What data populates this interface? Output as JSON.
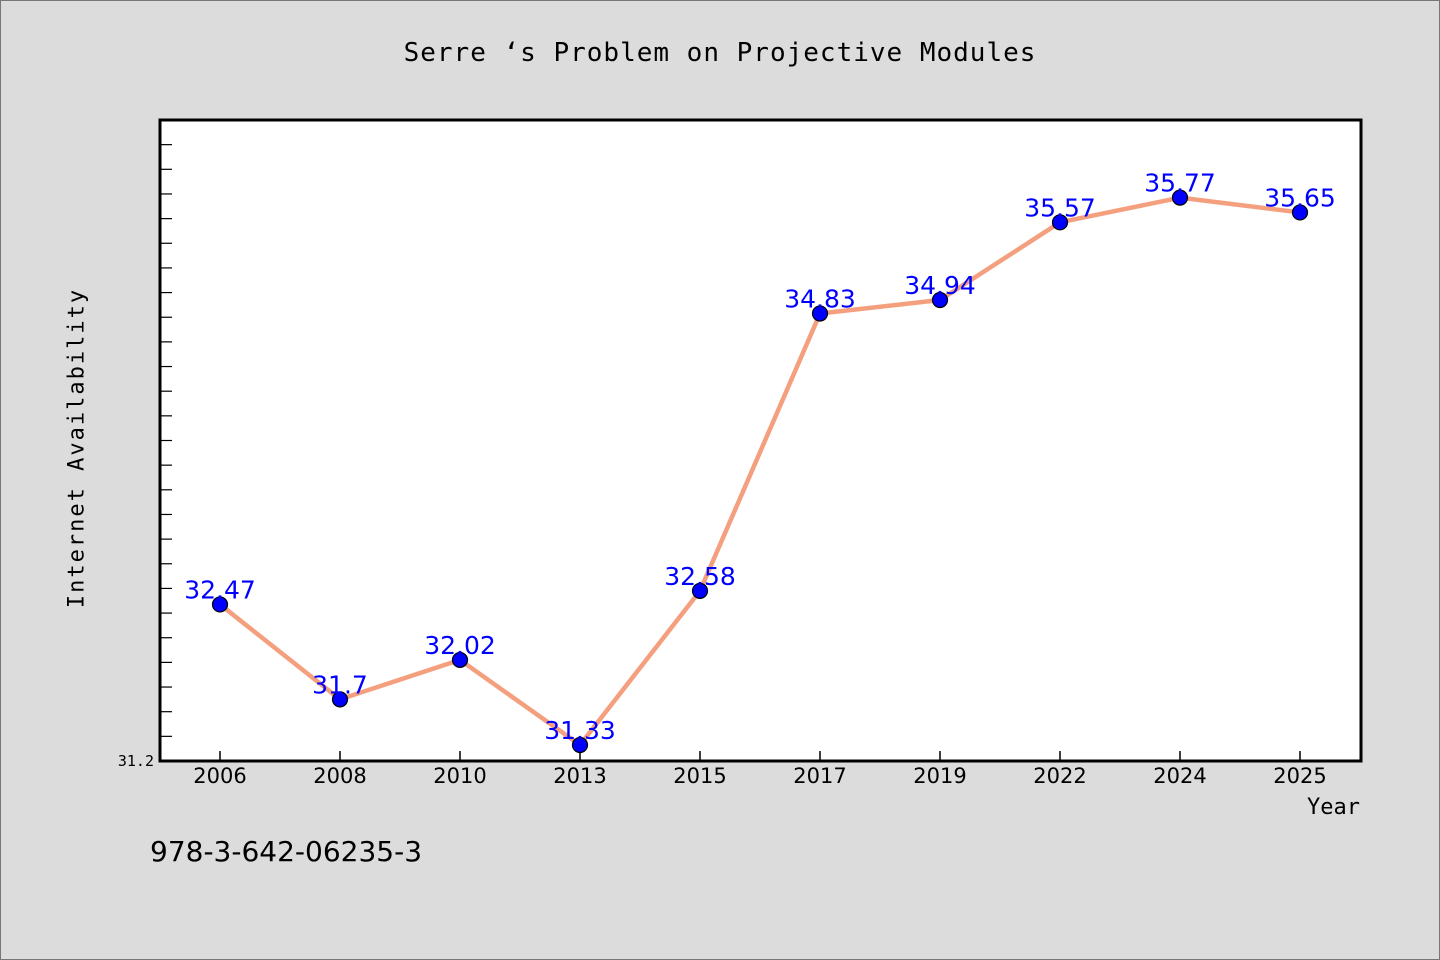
{
  "chart_data": {
    "type": "line",
    "title": "Serre ‘s Problem on Projective Modules",
    "xlabel": "Year",
    "ylabel": "Internet Availability",
    "categories": [
      "2006",
      "2008",
      "2010",
      "2013",
      "2015",
      "2017",
      "2019",
      "2022",
      "2024",
      "2025"
    ],
    "series": [
      {
        "values": [
          32.47,
          31.7,
          32.02,
          31.33,
          32.58,
          34.83,
          34.94,
          35.57,
          35.77,
          35.65
        ],
        "data_labels": [
          "32.47",
          "31.7",
          "32.02",
          "31.33",
          "32.58",
          "34.83",
          "34.94",
          "35.57",
          "35.77",
          "35.65"
        ]
      }
    ],
    "ylim": [
      31.2,
      36.4
    ],
    "y_ticks_labeled": [
      "31.2"
    ],
    "grid": false,
    "line_color": "#f4a07f",
    "marker_color": "#0000ff",
    "label_color": "#0000ff"
  },
  "footnote": "978-3-642-06235-3"
}
